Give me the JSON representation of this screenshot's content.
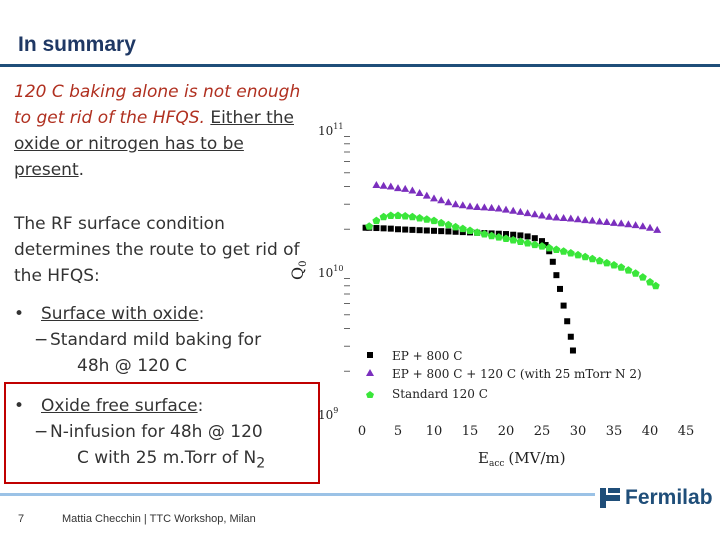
{
  "slide": {
    "title": "In summary",
    "page_number": "7",
    "footer": "Mattia Checchin | TTC Workshop, Milan",
    "logo_text": "Fermilab"
  },
  "text": {
    "p1_italic": "120 C baking alone is not enough to get rid of the HFQS.",
    "p1_underlined": "Either the oxide or nitrogen has to be present",
    "p1_end": ".",
    "p2": "The RF surface condition determines the route to get rid of the HFQS:",
    "bullet1_label": "Surface with oxide",
    "bullet1_colon": ":",
    "bullet1_sub_line1": "Standard mild baking for",
    "bullet1_sub_line2": "48h @ 120 C",
    "bullet2_label": "Oxide free surface",
    "bullet2_colon": ":",
    "bullet2_sub_line1": "N-infusion for 48h @ 120",
    "bullet2_sub_line2_pre": "C with 25 m.Torr of N",
    "bullet2_sub_line2_sub": "2",
    "bullet_symbol": "•",
    "dash_symbol": "−"
  },
  "chart_data": {
    "type": "scatter",
    "title": "",
    "xlabel_main": "E",
    "xlabel_sub": "acc",
    "xlabel_rest": "(MV/m)",
    "ylabel_main": "Q",
    "ylabel_sub": "0",
    "xlim": [
      0,
      45
    ],
    "x_ticks": [
      "0",
      "5",
      "10",
      "15",
      "20",
      "25",
      "30",
      "35",
      "40",
      "45"
    ],
    "y_scale": "log",
    "ylim_exp": [
      9,
      11
    ],
    "y_ticks": [
      {
        "exp": 11,
        "base": "10",
        "sup": "11"
      },
      {
        "exp": 10,
        "base": "10",
        "sup": "10"
      },
      {
        "exp": 9,
        "base": "10",
        "sup": "9"
      }
    ],
    "series": [
      {
        "name": "EP + 800 C",
        "color": "#000000",
        "marker": "square",
        "x": [
          0.5,
          1,
          2,
          3,
          4,
          5,
          6,
          7,
          8,
          9,
          10,
          11,
          12,
          13,
          14,
          15,
          16,
          17,
          18,
          19,
          20,
          21,
          22,
          23,
          24,
          25,
          25.5,
          26,
          26.5,
          27,
          27.5,
          28,
          28.5,
          29,
          29.3
        ],
        "y": [
          20500000000.0,
          20500000000.0,
          20400000000.0,
          20300000000.0,
          20200000000.0,
          20000000000.0,
          19900000000.0,
          19800000000.0,
          19700000000.0,
          19600000000.0,
          19500000000.0,
          19400000000.0,
          19300000000.0,
          19200000000.0,
          19100000000.0,
          19000000000.0,
          18900000000.0,
          18800000000.0,
          18700000000.0,
          18600000000.0,
          18500000000.0,
          18300000000.0,
          18100000000.0,
          17800000000.0,
          17300000000.0,
          16500000000.0,
          15500000000.0,
          14000000000.0,
          11800000000.0,
          9500000000.0,
          7600000000.0,
          5800000000.0,
          4500000000.0,
          3500000000.0,
          2800000000.0
        ]
      },
      {
        "name": "EP + 800 C + 120 C (with 25 mTorr N 2)",
        "color": "#7b2fbe",
        "marker": "triangle",
        "x": [
          2,
          3,
          4,
          5,
          6,
          7,
          8,
          9,
          10,
          11,
          12,
          13,
          14,
          15,
          16,
          17,
          18,
          19,
          20,
          21,
          22,
          23,
          24,
          25,
          26,
          27,
          28,
          29,
          30,
          31,
          32,
          33,
          34,
          35,
          36,
          37,
          38,
          39,
          40,
          41
        ],
        "y": [
          41000000000.0,
          40500000000.0,
          40000000000.0,
          39000000000.0,
          38500000000.0,
          37500000000.0,
          36000000000.0,
          34500000000.0,
          33000000000.0,
          32000000000.0,
          31000000000.0,
          30000000000.0,
          29500000000.0,
          29000000000.0,
          28700000000.0,
          28500000000.0,
          28300000000.0,
          28000000000.0,
          27500000000.0,
          27000000000.0,
          26500000000.0,
          26000000000.0,
          25500000000.0,
          25000000000.0,
          24500000000.0,
          24200000000.0,
          24000000000.0,
          23800000000.0,
          23500000000.0,
          23200000000.0,
          23000000000.0,
          22700000000.0,
          22500000000.0,
          22200000000.0,
          22000000000.0,
          21700000000.0,
          21400000000.0,
          21000000000.0,
          20500000000.0,
          19800000000.0
        ]
      },
      {
        "name": "Standard 120 C",
        "color": "#3ae63a",
        "marker": "pentagon",
        "x": [
          1,
          2,
          3,
          4,
          5,
          6,
          7,
          8,
          9,
          10,
          11,
          12,
          13,
          14,
          15,
          16,
          17,
          18,
          19,
          20,
          21,
          22,
          23,
          24,
          25,
          26,
          27,
          28,
          29,
          30,
          31,
          32,
          33,
          34,
          35,
          36,
          37,
          38,
          39,
          40,
          40.8
        ],
        "y": [
          21000000000.0,
          23000000000.0,
          24500000000.0,
          25000000000.0,
          25000000000.0,
          24800000000.0,
          24500000000.0,
          24000000000.0,
          23500000000.0,
          23000000000.0,
          22200000000.0,
          21500000000.0,
          20800000000.0,
          20200000000.0,
          19600000000.0,
          19000000000.0,
          18500000000.0,
          18000000000.0,
          17600000000.0,
          17200000000.0,
          16800000000.0,
          16400000000.0,
          16000000000.0,
          15600000000.0,
          15200000000.0,
          14800000000.0,
          14400000000.0,
          14000000000.0,
          13600000000.0,
          13200000000.0,
          12800000000.0,
          12400000000.0,
          12000000000.0,
          11600000000.0,
          11200000000.0,
          10800000000.0,
          10300000000.0,
          9800000000.0,
          9200000000.0,
          8500000000.0,
          8000000000.0
        ]
      }
    ]
  }
}
